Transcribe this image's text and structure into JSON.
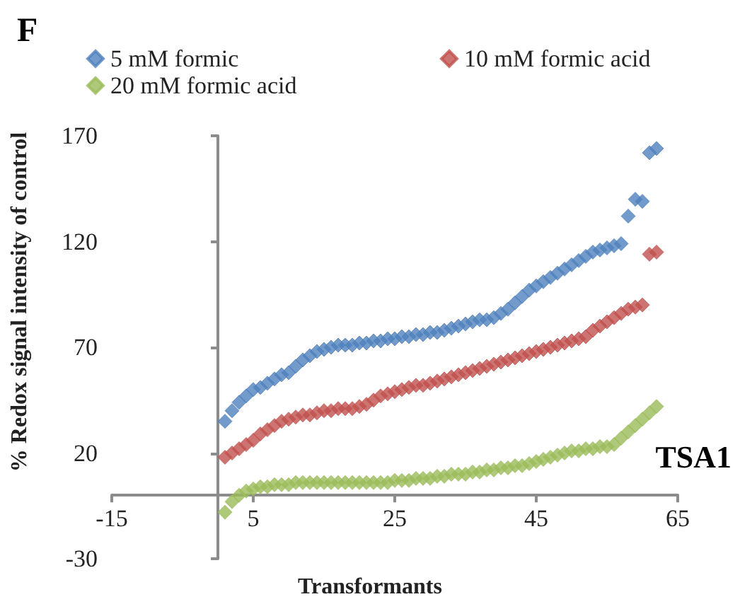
{
  "chart_data": {
    "type": "scatter",
    "xlabel": "Transformants",
    "ylabel": "% Redox signal intensity of control",
    "annotations": [
      "F",
      "TSA1"
    ],
    "x": [
      1,
      2,
      3,
      4,
      5,
      6,
      7,
      8,
      9,
      10,
      11,
      12,
      13,
      14,
      15,
      16,
      17,
      18,
      19,
      20,
      21,
      22,
      23,
      24,
      25,
      26,
      27,
      28,
      29,
      30,
      31,
      32,
      33,
      34,
      35,
      36,
      37,
      38,
      39,
      40,
      41,
      42,
      43,
      44,
      45,
      46,
      47,
      48,
      49,
      50,
      51,
      52,
      53,
      54,
      55,
      56,
      57,
      58,
      59,
      60,
      61,
      62
    ],
    "series": [
      {
        "name": "5 mM formic",
        "color": "#4f81bd",
        "values": [
          35,
          40,
          44,
          47,
          50,
          51,
          53,
          55,
          57,
          58,
          61,
          64,
          66,
          68,
          69,
          70,
          71,
          71,
          71,
          72,
          72,
          73,
          73,
          74,
          74,
          75,
          75,
          76,
          76,
          77,
          77,
          78,
          79,
          80,
          81,
          82,
          83,
          83,
          84,
          86,
          88,
          91,
          94,
          97,
          99,
          101,
          103,
          105,
          107,
          109,
          111,
          113,
          115,
          116,
          117,
          118,
          119,
          132,
          140,
          139,
          162,
          164
        ]
      },
      {
        "name": "10 mM formic acid",
        "color": "#c0504d",
        "values": [
          18,
          20,
          22,
          24,
          26,
          29,
          31,
          33,
          35,
          36,
          37,
          38,
          38,
          39,
          40,
          40,
          41,
          41,
          41,
          42,
          43,
          45,
          47,
          48,
          49,
          50,
          51,
          52,
          52,
          53,
          54,
          55,
          56,
          57,
          58,
          59,
          60,
          61,
          62,
          63,
          64,
          65,
          66,
          67,
          68,
          69,
          70,
          71,
          72,
          73,
          74,
          75,
          78,
          80,
          82,
          84,
          86,
          88,
          89,
          90,
          114,
          115
        ]
      },
      {
        "name": "20 mM formic acid",
        "color": "#9bbb59",
        "values": [
          -8,
          -3,
          0,
          2,
          3,
          4,
          4,
          5,
          5,
          5,
          6,
          6,
          6,
          6,
          6,
          6,
          6,
          6,
          6,
          6,
          6,
          6,
          6,
          6,
          7,
          7,
          7,
          8,
          8,
          8,
          9,
          9,
          10,
          10,
          10,
          11,
          11,
          12,
          12,
          13,
          13,
          14,
          14,
          15,
          16,
          17,
          18,
          19,
          20,
          21,
          21,
          22,
          22,
          23,
          23,
          24,
          27,
          30,
          33,
          36,
          39,
          42
        ]
      }
    ],
    "xlim": [
      -15,
      65
    ],
    "xticks": [
      -15,
      5,
      25,
      45,
      65
    ],
    "ylim": [
      -30,
      170
    ],
    "yticks": [
      -30,
      20,
      70,
      120,
      170
    ],
    "legend": "top",
    "grid": false,
    "marker": "diamond"
  }
}
